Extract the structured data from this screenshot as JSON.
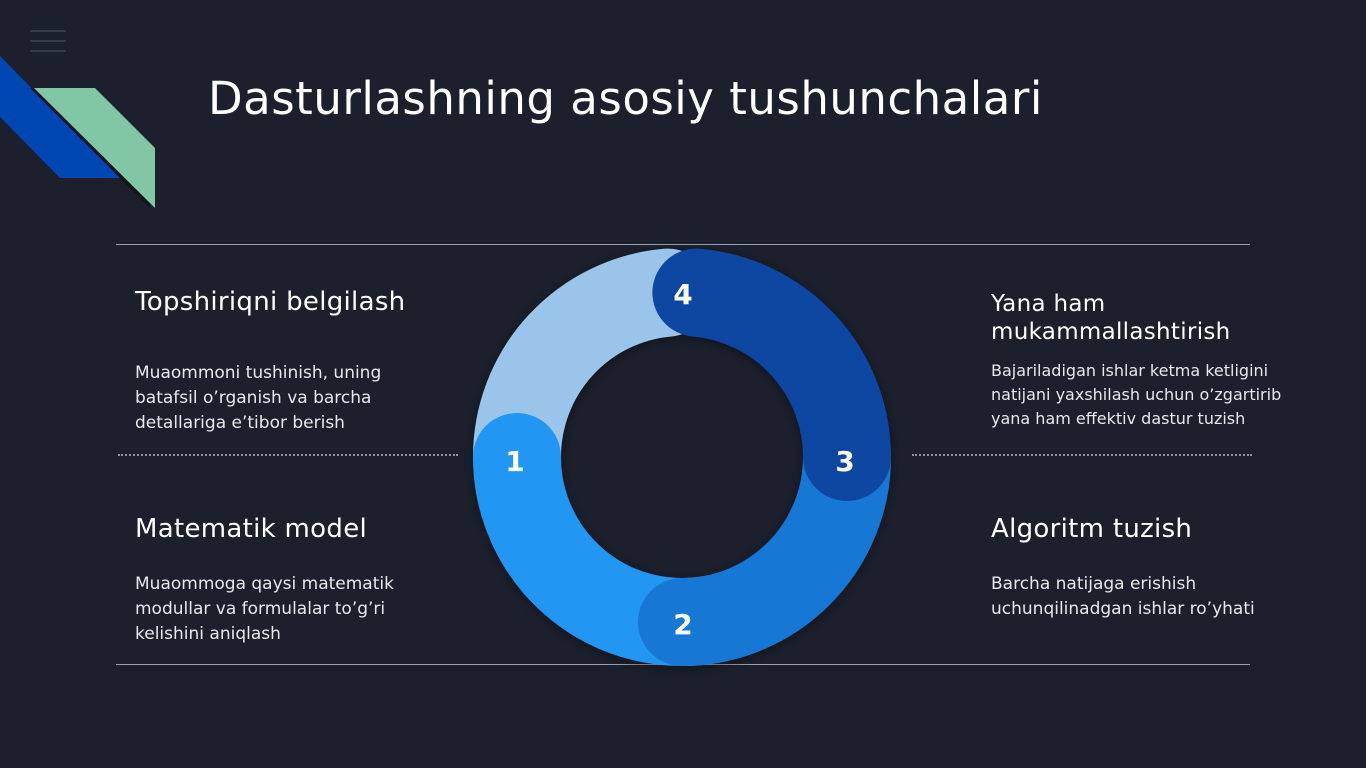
{
  "slide": {
    "title": "Dasturlashning asosiy tushunchalari"
  },
  "steps": [
    {
      "number": "1",
      "title": "Topshiriqni belgilash",
      "description": "Muaommoni tushinish, uning batafsil o’rganish va barcha detallariga e’tibor berish",
      "color": "#9bc4ea"
    },
    {
      "number": "2",
      "title": "Matematik model",
      "description": "Muaommoga qaysi matematik modullar va formulalar to’g’ri kelishini aniqlash",
      "color": "#2196f3"
    },
    {
      "number": "3",
      "title": "Algoritm tuzish",
      "description": "Barcha natijaga erishish uchunqilinadgan ishlar ro’yhati",
      "color": "#1877d4"
    },
    {
      "number": "4",
      "title": "Yana ham mukammallashtirish",
      "description": "Bajariladigan ishlar ketma ketligini natijani yaxshilash uchun o’zgartirib yana ham effektiv dastur tuzish",
      "color": "#0d47a1"
    }
  ],
  "icons": {
    "menu": "hamburger-menu-icon"
  },
  "colors": {
    "background": "#1b202c",
    "accent_blue": "#0047b3",
    "accent_green": "#82c7a5"
  }
}
